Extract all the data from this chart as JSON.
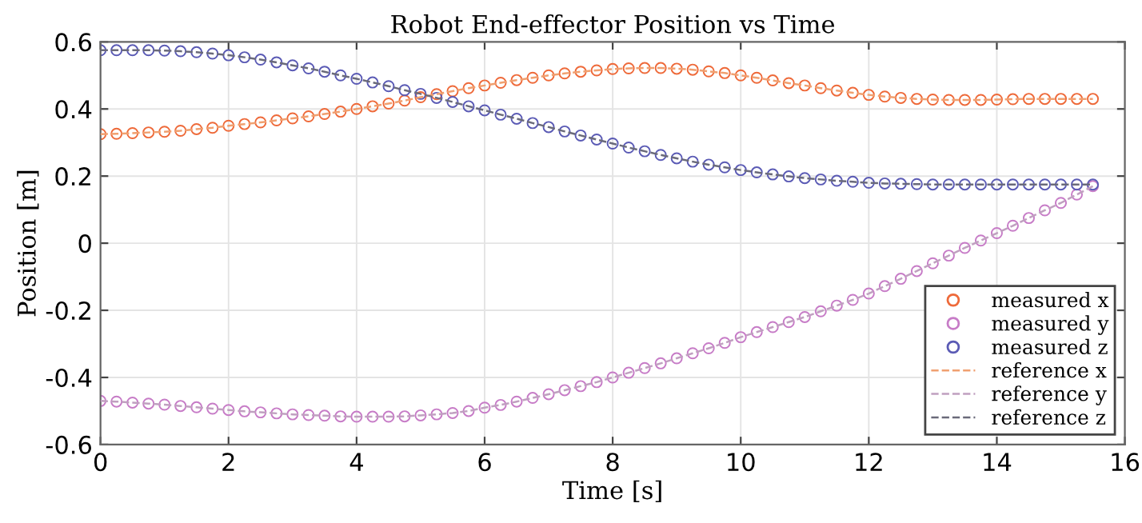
{
  "chart_data": {
    "type": "line",
    "title": "Robot End-effector Position vs Time",
    "xlabel": "Time [s]",
    "ylabel": "Position [m]",
    "x": [
      0,
      0.25,
      0.5,
      0.75,
      1,
      1.25,
      1.5,
      1.75,
      2,
      2.25,
      2.5,
      2.75,
      3,
      3.25,
      3.5,
      3.75,
      4,
      4.25,
      4.5,
      4.75,
      5,
      5.25,
      5.5,
      5.75,
      6,
      6.25,
      6.5,
      6.75,
      7,
      7.25,
      7.5,
      7.75,
      8,
      8.25,
      8.5,
      8.75,
      9,
      9.25,
      9.5,
      9.75,
      10,
      10.25,
      10.5,
      10.75,
      11,
      11.25,
      11.5,
      11.75,
      12,
      12.25,
      12.5,
      12.75,
      13,
      13.25,
      13.5,
      13.75,
      14,
      14.25,
      14.5,
      14.75,
      15,
      15.25,
      15.5
    ],
    "series": [
      {
        "name": "measured x",
        "type": "scatter",
        "marker": "circle",
        "color": "#ee6a3a",
        "values": [
          0.325,
          0.326,
          0.328,
          0.33,
          0.332,
          0.335,
          0.34,
          0.344,
          0.35,
          0.355,
          0.36,
          0.366,
          0.372,
          0.378,
          0.385,
          0.392,
          0.4,
          0.408,
          0.416,
          0.425,
          0.435,
          0.444,
          0.453,
          0.462,
          0.47,
          0.478,
          0.486,
          0.493,
          0.5,
          0.506,
          0.511,
          0.515,
          0.519,
          0.521,
          0.522,
          0.522,
          0.52,
          0.517,
          0.512,
          0.507,
          0.5,
          0.493,
          0.485,
          0.477,
          0.47,
          0.462,
          0.455,
          0.448,
          0.442,
          0.437,
          0.433,
          0.43,
          0.428,
          0.427,
          0.427,
          0.427,
          0.428,
          0.429,
          0.43,
          0.43,
          0.43,
          0.43,
          0.43
        ]
      },
      {
        "name": "measured y",
        "type": "scatter",
        "marker": "circle",
        "color": "#c77cc7",
        "values": [
          -0.47,
          -0.472,
          -0.475,
          -0.478,
          -0.481,
          -0.485,
          -0.489,
          -0.493,
          -0.497,
          -0.501,
          -0.504,
          -0.507,
          -0.51,
          -0.512,
          -0.514,
          -0.516,
          -0.517,
          -0.517,
          -0.517,
          -0.516,
          -0.513,
          -0.51,
          -0.506,
          -0.5,
          -0.49,
          -0.482,
          -0.472,
          -0.461,
          -0.45,
          -0.438,
          -0.426,
          -0.414,
          -0.4,
          -0.386,
          -0.372,
          -0.358,
          -0.343,
          -0.328,
          -0.313,
          -0.297,
          -0.28,
          -0.265,
          -0.25,
          -0.235,
          -0.22,
          -0.203,
          -0.186,
          -0.169,
          -0.15,
          -0.128,
          -0.106,
          -0.083,
          -0.06,
          -0.037,
          -0.014,
          0.008,
          0.03,
          0.052,
          0.075,
          0.098,
          0.12,
          0.145,
          0.17
        ]
      },
      {
        "name": "measured z",
        "type": "scatter",
        "marker": "circle",
        "color": "#5b5bb5",
        "values": [
          0.575,
          0.575,
          0.575,
          0.575,
          0.574,
          0.572,
          0.569,
          0.565,
          0.56,
          0.554,
          0.547,
          0.539,
          0.53,
          0.521,
          0.511,
          0.5,
          0.49,
          0.479,
          0.468,
          0.456,
          0.445,
          0.433,
          0.421,
          0.408,
          0.396,
          0.383,
          0.371,
          0.358,
          0.346,
          0.333,
          0.321,
          0.309,
          0.297,
          0.285,
          0.274,
          0.263,
          0.253,
          0.243,
          0.234,
          0.226,
          0.218,
          0.211,
          0.205,
          0.199,
          0.194,
          0.19,
          0.186,
          0.183,
          0.18,
          0.178,
          0.177,
          0.176,
          0.175,
          0.175,
          0.175,
          0.175,
          0.175,
          0.175,
          0.175,
          0.175,
          0.175,
          0.175,
          0.175
        ]
      },
      {
        "name": "reference x",
        "line_style": "dashed",
        "color": "#f0a070",
        "values": [
          0.325,
          0.326,
          0.328,
          0.33,
          0.332,
          0.335,
          0.34,
          0.344,
          0.35,
          0.355,
          0.36,
          0.366,
          0.372,
          0.378,
          0.385,
          0.392,
          0.4,
          0.408,
          0.416,
          0.425,
          0.435,
          0.444,
          0.453,
          0.462,
          0.47,
          0.478,
          0.486,
          0.493,
          0.5,
          0.506,
          0.511,
          0.515,
          0.519,
          0.521,
          0.522,
          0.522,
          0.52,
          0.517,
          0.512,
          0.507,
          0.5,
          0.493,
          0.485,
          0.477,
          0.47,
          0.462,
          0.455,
          0.448,
          0.442,
          0.437,
          0.433,
          0.43,
          0.428,
          0.427,
          0.427,
          0.427,
          0.428,
          0.429,
          0.43,
          0.43,
          0.43,
          0.43,
          0.43
        ]
      },
      {
        "name": "reference y",
        "line_style": "dashed",
        "color": "#c0a0c0",
        "values": [
          -0.47,
          -0.472,
          -0.475,
          -0.478,
          -0.481,
          -0.485,
          -0.489,
          -0.493,
          -0.497,
          -0.501,
          -0.504,
          -0.507,
          -0.51,
          -0.512,
          -0.514,
          -0.516,
          -0.517,
          -0.517,
          -0.517,
          -0.516,
          -0.513,
          -0.51,
          -0.506,
          -0.5,
          -0.49,
          -0.482,
          -0.472,
          -0.461,
          -0.45,
          -0.438,
          -0.426,
          -0.414,
          -0.4,
          -0.386,
          -0.372,
          -0.358,
          -0.343,
          -0.328,
          -0.313,
          -0.297,
          -0.28,
          -0.265,
          -0.25,
          -0.235,
          -0.22,
          -0.203,
          -0.186,
          -0.169,
          -0.15,
          -0.128,
          -0.106,
          -0.083,
          -0.06,
          -0.037,
          -0.014,
          0.008,
          0.03,
          0.052,
          0.075,
          0.098,
          0.12,
          0.145,
          0.17
        ]
      },
      {
        "name": "reference z",
        "line_style": "dashed",
        "color": "#6a6a7a",
        "values": [
          0.575,
          0.575,
          0.575,
          0.575,
          0.574,
          0.572,
          0.569,
          0.565,
          0.56,
          0.554,
          0.547,
          0.539,
          0.53,
          0.521,
          0.511,
          0.5,
          0.49,
          0.479,
          0.468,
          0.456,
          0.445,
          0.433,
          0.421,
          0.408,
          0.396,
          0.383,
          0.371,
          0.358,
          0.346,
          0.333,
          0.321,
          0.309,
          0.297,
          0.285,
          0.274,
          0.263,
          0.253,
          0.243,
          0.234,
          0.226,
          0.218,
          0.211,
          0.205,
          0.199,
          0.194,
          0.19,
          0.186,
          0.183,
          0.18,
          0.178,
          0.177,
          0.176,
          0.175,
          0.175,
          0.175,
          0.175,
          0.175,
          0.175,
          0.175,
          0.175,
          0.175,
          0.175,
          0.175
        ]
      }
    ],
    "xlim": [
      0,
      16
    ],
    "ylim": [
      -0.6,
      0.6
    ],
    "xticks": [
      0,
      2,
      4,
      6,
      8,
      10,
      12,
      14,
      16
    ],
    "yticks": [
      -0.6,
      -0.4,
      -0.2,
      0,
      0.2,
      0.4,
      0.6
    ],
    "grid": true,
    "legend": "bottom right"
  }
}
